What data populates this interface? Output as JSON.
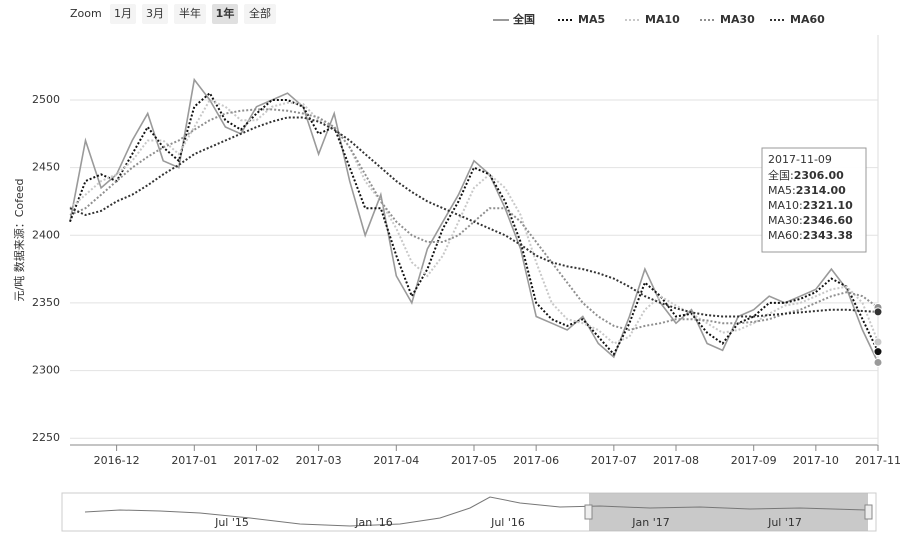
{
  "chart_data": {
    "type": "line",
    "zoom": {
      "label": "Zoom",
      "buttons": [
        "1月",
        "3月",
        "半年",
        "1年",
        "全部"
      ],
      "active": 3
    },
    "ylabel": "元/吨 数据来源：Cofeed",
    "categories": [
      null,
      null,
      null,
      "2016-12",
      null,
      null,
      null,
      null,
      "2017-01",
      null,
      null,
      null,
      "2017-02",
      null,
      null,
      null,
      "2017-03",
      null,
      null,
      null,
      null,
      "2017-04",
      null,
      null,
      null,
      null,
      "2017-05",
      null,
      null,
      null,
      "2017-06",
      null,
      null,
      null,
      null,
      "2017-07",
      null,
      null,
      null,
      "2017-08",
      null,
      null,
      null,
      null,
      "2017-09",
      null,
      null,
      null,
      "2017-10",
      null,
      null,
      null,
      "2017-11"
    ],
    "ylim": [
      2245,
      2548
    ],
    "yticks": [
      2250,
      2300,
      2350,
      2400,
      2450,
      2500
    ],
    "grid": true,
    "series": [
      {
        "name": "全国",
        "color": "#9a9a9a",
        "style": "solid",
        "values": [
          2410,
          2470,
          2435,
          2445,
          2470,
          2490,
          2455,
          2450,
          2515,
          2500,
          2480,
          2475,
          2495,
          2500,
          2505,
          2495,
          2460,
          2490,
          2440,
          2400,
          2430,
          2370,
          2350,
          2390,
          2410,
          2430,
          2455,
          2445,
          2420,
          2390,
          2340,
          2335,
          2330,
          2340,
          2320,
          2310,
          2340,
          2375,
          2350,
          2335,
          2345,
          2320,
          2315,
          2340,
          2345,
          2355,
          2350,
          2355,
          2360,
          2375,
          2360,
          2330,
          2306
        ]
      },
      {
        "name": "MA5",
        "color": "#111111",
        "style": "dotted",
        "values": [
          2410,
          2440,
          2445,
          2440,
          2460,
          2480,
          2465,
          2455,
          2495,
          2505,
          2485,
          2478,
          2490,
          2500,
          2500,
          2495,
          2475,
          2480,
          2450,
          2420,
          2420,
          2385,
          2355,
          2375,
          2405,
          2425,
          2450,
          2445,
          2425,
          2395,
          2350,
          2338,
          2333,
          2338,
          2325,
          2312,
          2335,
          2365,
          2355,
          2340,
          2342,
          2328,
          2320,
          2335,
          2340,
          2350,
          2350,
          2353,
          2358,
          2368,
          2362,
          2338,
          2314
        ]
      },
      {
        "name": "MA10",
        "color": "#c8c8c8",
        "style": "dotted",
        "values": [
          2420,
          2430,
          2440,
          2445,
          2455,
          2470,
          2470,
          2460,
          2480,
          2500,
          2495,
          2485,
          2485,
          2495,
          2498,
          2497,
          2485,
          2480,
          2465,
          2440,
          2425,
          2405,
          2380,
          2370,
          2385,
          2410,
          2435,
          2445,
          2435,
          2415,
          2380,
          2350,
          2338,
          2335,
          2330,
          2320,
          2325,
          2345,
          2355,
          2348,
          2342,
          2335,
          2328,
          2330,
          2335,
          2342,
          2348,
          2350,
          2355,
          2360,
          2362,
          2350,
          2321.1
        ]
      },
      {
        "name": "MA30",
        "color": "#8f8f8f",
        "style": "dotted",
        "values": [
          2415,
          2420,
          2430,
          2440,
          2450,
          2458,
          2465,
          2470,
          2478,
          2485,
          2490,
          2492,
          2493,
          2493,
          2492,
          2490,
          2487,
          2480,
          2465,
          2445,
          2425,
          2410,
          2400,
          2395,
          2395,
          2400,
          2410,
          2420,
          2420,
          2410,
          2395,
          2380,
          2365,
          2350,
          2340,
          2333,
          2330,
          2333,
          2335,
          2338,
          2338,
          2337,
          2335,
          2335,
          2336,
          2338,
          2342,
          2345,
          2350,
          2355,
          2358,
          2355,
          2346.6
        ]
      },
      {
        "name": "MA60",
        "color": "#333333",
        "style": "dotted",
        "values": [
          2420,
          2415,
          2418,
          2425,
          2430,
          2437,
          2445,
          2452,
          2460,
          2465,
          2470,
          2475,
          2480,
          2484,
          2487,
          2487,
          2484,
          2478,
          2470,
          2460,
          2450,
          2440,
          2432,
          2425,
          2420,
          2415,
          2410,
          2405,
          2400,
          2393,
          2385,
          2380,
          2377,
          2375,
          2372,
          2368,
          2362,
          2355,
          2350,
          2346,
          2343,
          2341,
          2340,
          2340,
          2340,
          2341,
          2342,
          2343,
          2344,
          2345,
          2345,
          2344,
          2343.38
        ]
      }
    ],
    "tooltip": {
      "date": "2017-11-09",
      "rows": [
        {
          "label": "全国:",
          "value": "2306.00"
        },
        {
          "label": "MA5:",
          "value": "2314.00"
        },
        {
          "label": "MA10:",
          "value": "2321.10"
        },
        {
          "label": "MA30:",
          "value": "2346.60"
        },
        {
          "label": "MA60:",
          "value": "2343.38"
        }
      ]
    },
    "navigator": {
      "labels": [
        "Jul '15",
        "Jan '16",
        "Jul '16",
        "Jan '17",
        "Jul '17"
      ]
    }
  }
}
